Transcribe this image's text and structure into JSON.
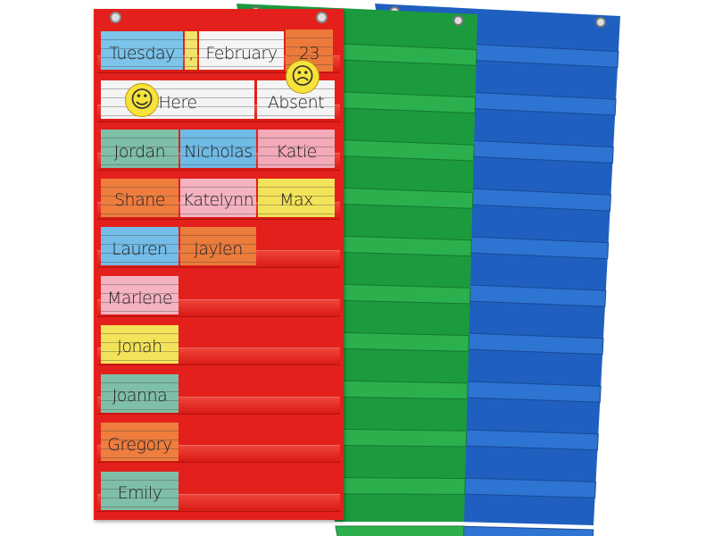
{
  "header_row": [
    {
      "text": "Tuesday",
      "color": "#7cc4ea"
    },
    {
      "text": ",",
      "color": "#f2e36a"
    },
    {
      "text": "February",
      "color": "#f4f4f4"
    },
    {
      "text": "23",
      "color": "#ec7a3a"
    }
  ],
  "attendance_row": [
    {
      "text": "Here",
      "color": "#f4f4f4",
      "face": "happy-face"
    },
    {
      "text": "Absent",
      "color": "#f4f4f4",
      "face": "sad-face"
    }
  ],
  "name_rows": [
    [
      {
        "text": "Jordan",
        "color": "#7fbfa8"
      },
      {
        "text": "Nicholas",
        "color": "#6fbbe6"
      },
      {
        "text": "Katie",
        "color": "#f3a9b8"
      }
    ],
    [
      {
        "text": "Shane",
        "color": "#ee7d3e"
      },
      {
        "text": "Katelynn",
        "color": "#f5b3c2"
      },
      {
        "text": "Max",
        "color": "#f3e35a"
      }
    ],
    [
      {
        "text": "Lauren",
        "color": "#74bde8"
      },
      {
        "text": "Jaylen",
        "color": "#ec7c3c"
      }
    ],
    [
      {
        "text": "Marlene",
        "color": "#f5b3c2"
      }
    ],
    [
      {
        "text": "Jonah",
        "color": "#f3e35a"
      }
    ],
    [
      {
        "text": "Joanna",
        "color": "#7fbfa8"
      }
    ],
    [
      {
        "text": "Gregory",
        "color": "#ee7d3e"
      }
    ],
    [
      {
        "text": "Emily",
        "color": "#7fbfa8"
      }
    ]
  ],
  "charts": {
    "red": "#e3201b",
    "green": "#1c9a3e",
    "blue": "#1f5fbf"
  }
}
